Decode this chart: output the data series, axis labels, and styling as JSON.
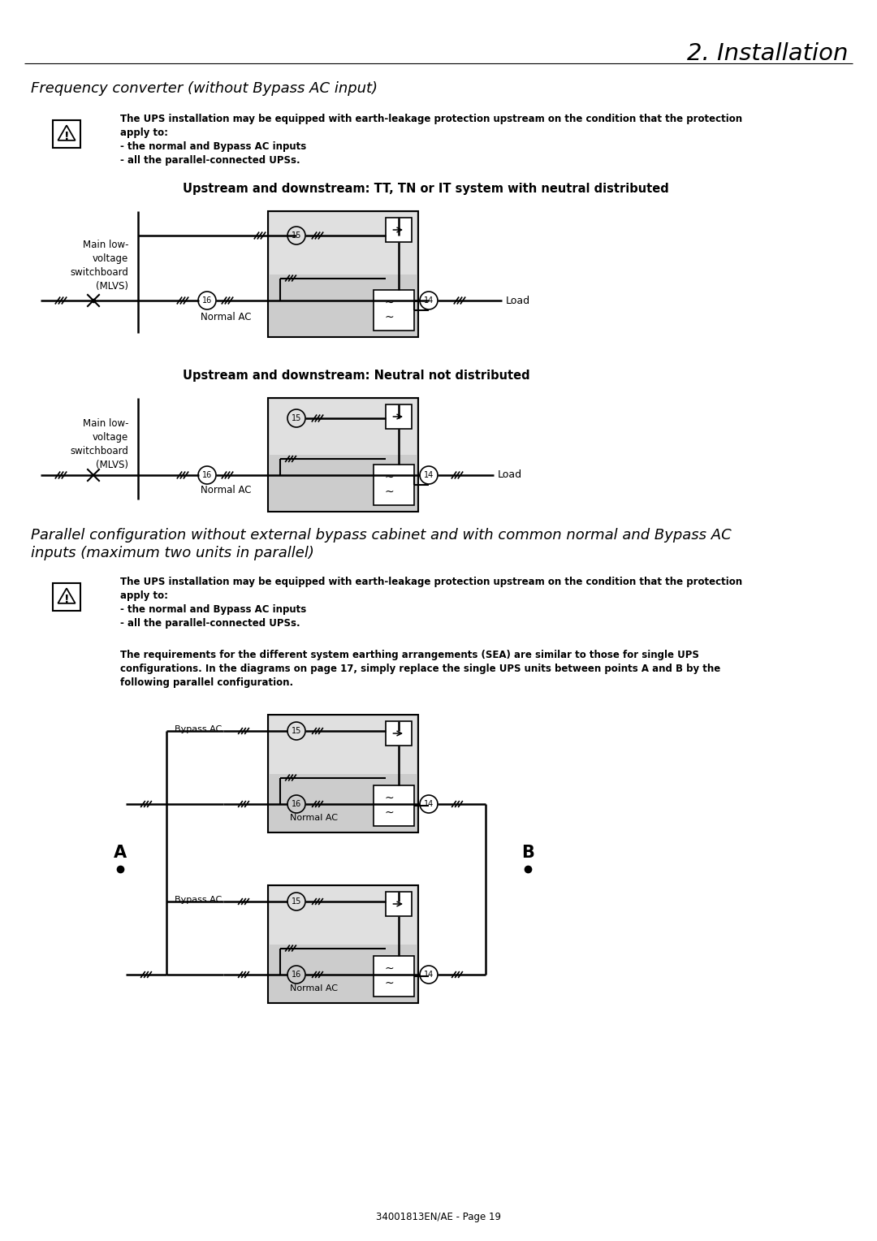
{
  "page_title": "2. Installation",
  "section1_title": "Frequency converter (without Bypass AC input)",
  "warning_text_line1": "The UPS installation may be equipped with earth-leakage protection upstream on the condition that the protection",
  "warning_text_line2": "apply to:",
  "warning_text_line3": "- the normal and Bypass AC inputs",
  "warning_text_line4": "- all the parallel-connected UPSs.",
  "diagram1_title": "Upstream and downstream: TT, TN or IT system with neutral distributed",
  "diagram2_title": "Upstream and downstream: Neutral not distributed",
  "section2_title_line1": "Parallel configuration without external bypass cabinet and with common normal and Bypass AC",
  "section2_title_line2": "inputs (maximum two units in parallel)",
  "note_line1": "The requirements for the different system earthing arrangements (SEA) are similar to those for single UPS",
  "note_line2": "configurations. In the diagrams on page 17, simply replace the single UPS units between points A and B by the",
  "note_line3": "following parallel configuration.",
  "footer": "34001813EN/AE - Page 19",
  "mlvs_label": "Main low-\nvoltage\nswitchboard\n(MLVS)",
  "normal_ac": "Normal AC",
  "bypass_ac": "Bypass AC",
  "load": "Load",
  "label_A": "A",
  "label_B": "B"
}
